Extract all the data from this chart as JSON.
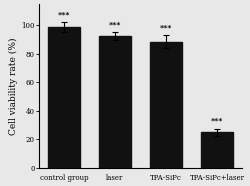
{
  "categories": [
    "control group",
    "laser",
    "TPA-SiPc",
    "TPA-SiPc+laser"
  ],
  "values": [
    99.0,
    92.5,
    88.5,
    25.0
  ],
  "errors": [
    3.5,
    3.0,
    4.5,
    2.5
  ],
  "bar_color": "#111111",
  "bar_edge_color": "#111111",
  "ylabel": "Cell viability rate (%)",
  "ylim": [
    0,
    115
  ],
  "yticks": [
    0,
    20,
    40,
    60,
    80,
    100
  ],
  "significance": [
    "***",
    "***",
    "***",
    "***"
  ],
  "sig_fontsize": 5.5,
  "ylabel_fontsize": 6.5,
  "tick_fontsize": 5.0,
  "background_color": "#e8e8e8",
  "bar_width": 0.62,
  "elinewidth": 0.8,
  "capsize": 2.5,
  "capthick": 0.8
}
